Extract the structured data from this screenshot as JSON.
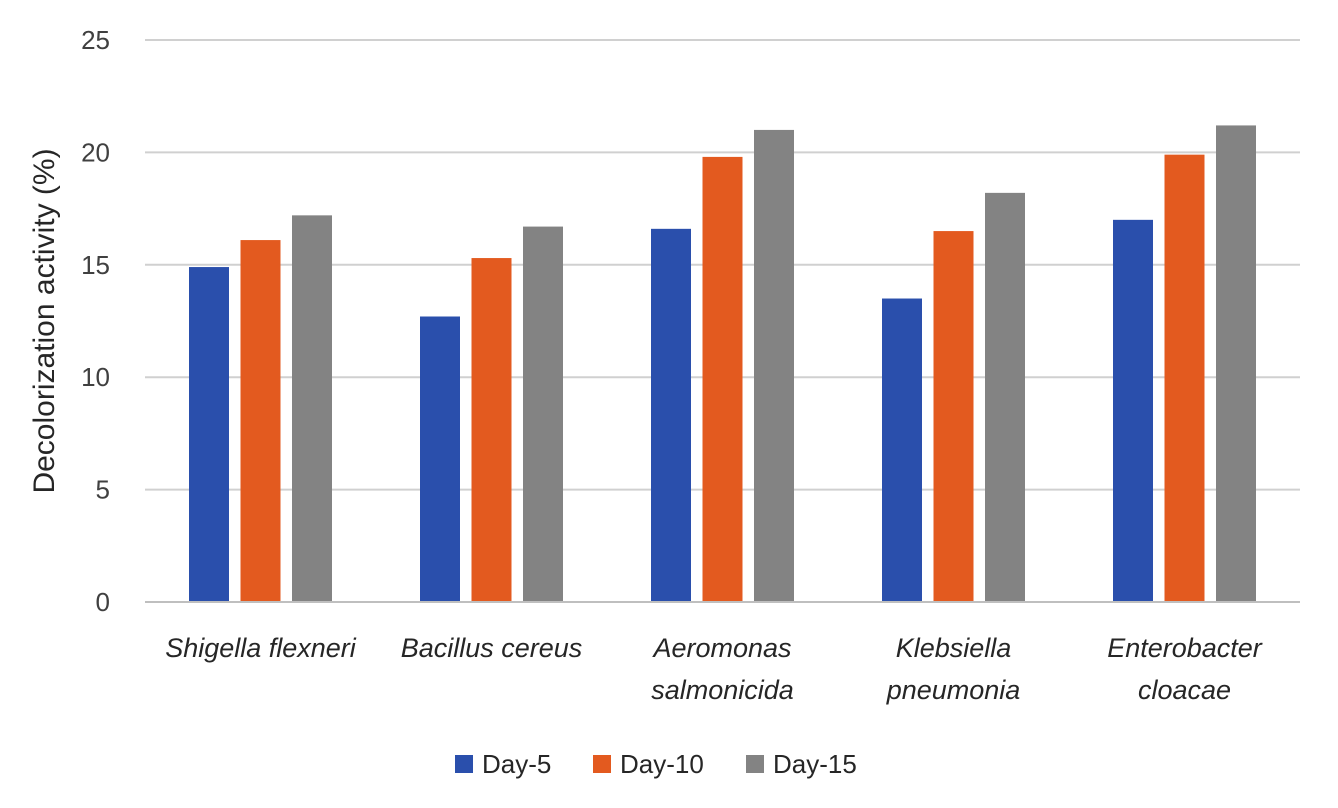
{
  "chart_data": {
    "type": "bar",
    "title": "",
    "xlabel": "",
    "ylabel": "Decolorization activity (%)",
    "ylim": [
      0,
      25
    ],
    "yticks": [
      0,
      5,
      10,
      15,
      20,
      25
    ],
    "grid": true,
    "legend_position": "bottom",
    "categories": [
      [
        "Shigella flexneri"
      ],
      [
        "Bacillus cereus"
      ],
      [
        "Aeromonas",
        "salmonicida"
      ],
      [
        "Klebsiella",
        "pneumonia"
      ],
      [
        "Enterobacter",
        "cloacae"
      ]
    ],
    "series": [
      {
        "name": "Day-5",
        "color": "#2a4fac",
        "values": [
          14.9,
          12.7,
          16.6,
          13.5,
          17.0
        ]
      },
      {
        "name": "Day-10",
        "color": "#e35a1f",
        "values": [
          16.1,
          15.3,
          19.8,
          16.5,
          19.9
        ]
      },
      {
        "name": "Day-15",
        "color": "#838383",
        "values": [
          17.2,
          16.7,
          21.0,
          18.2,
          21.2
        ]
      }
    ]
  }
}
